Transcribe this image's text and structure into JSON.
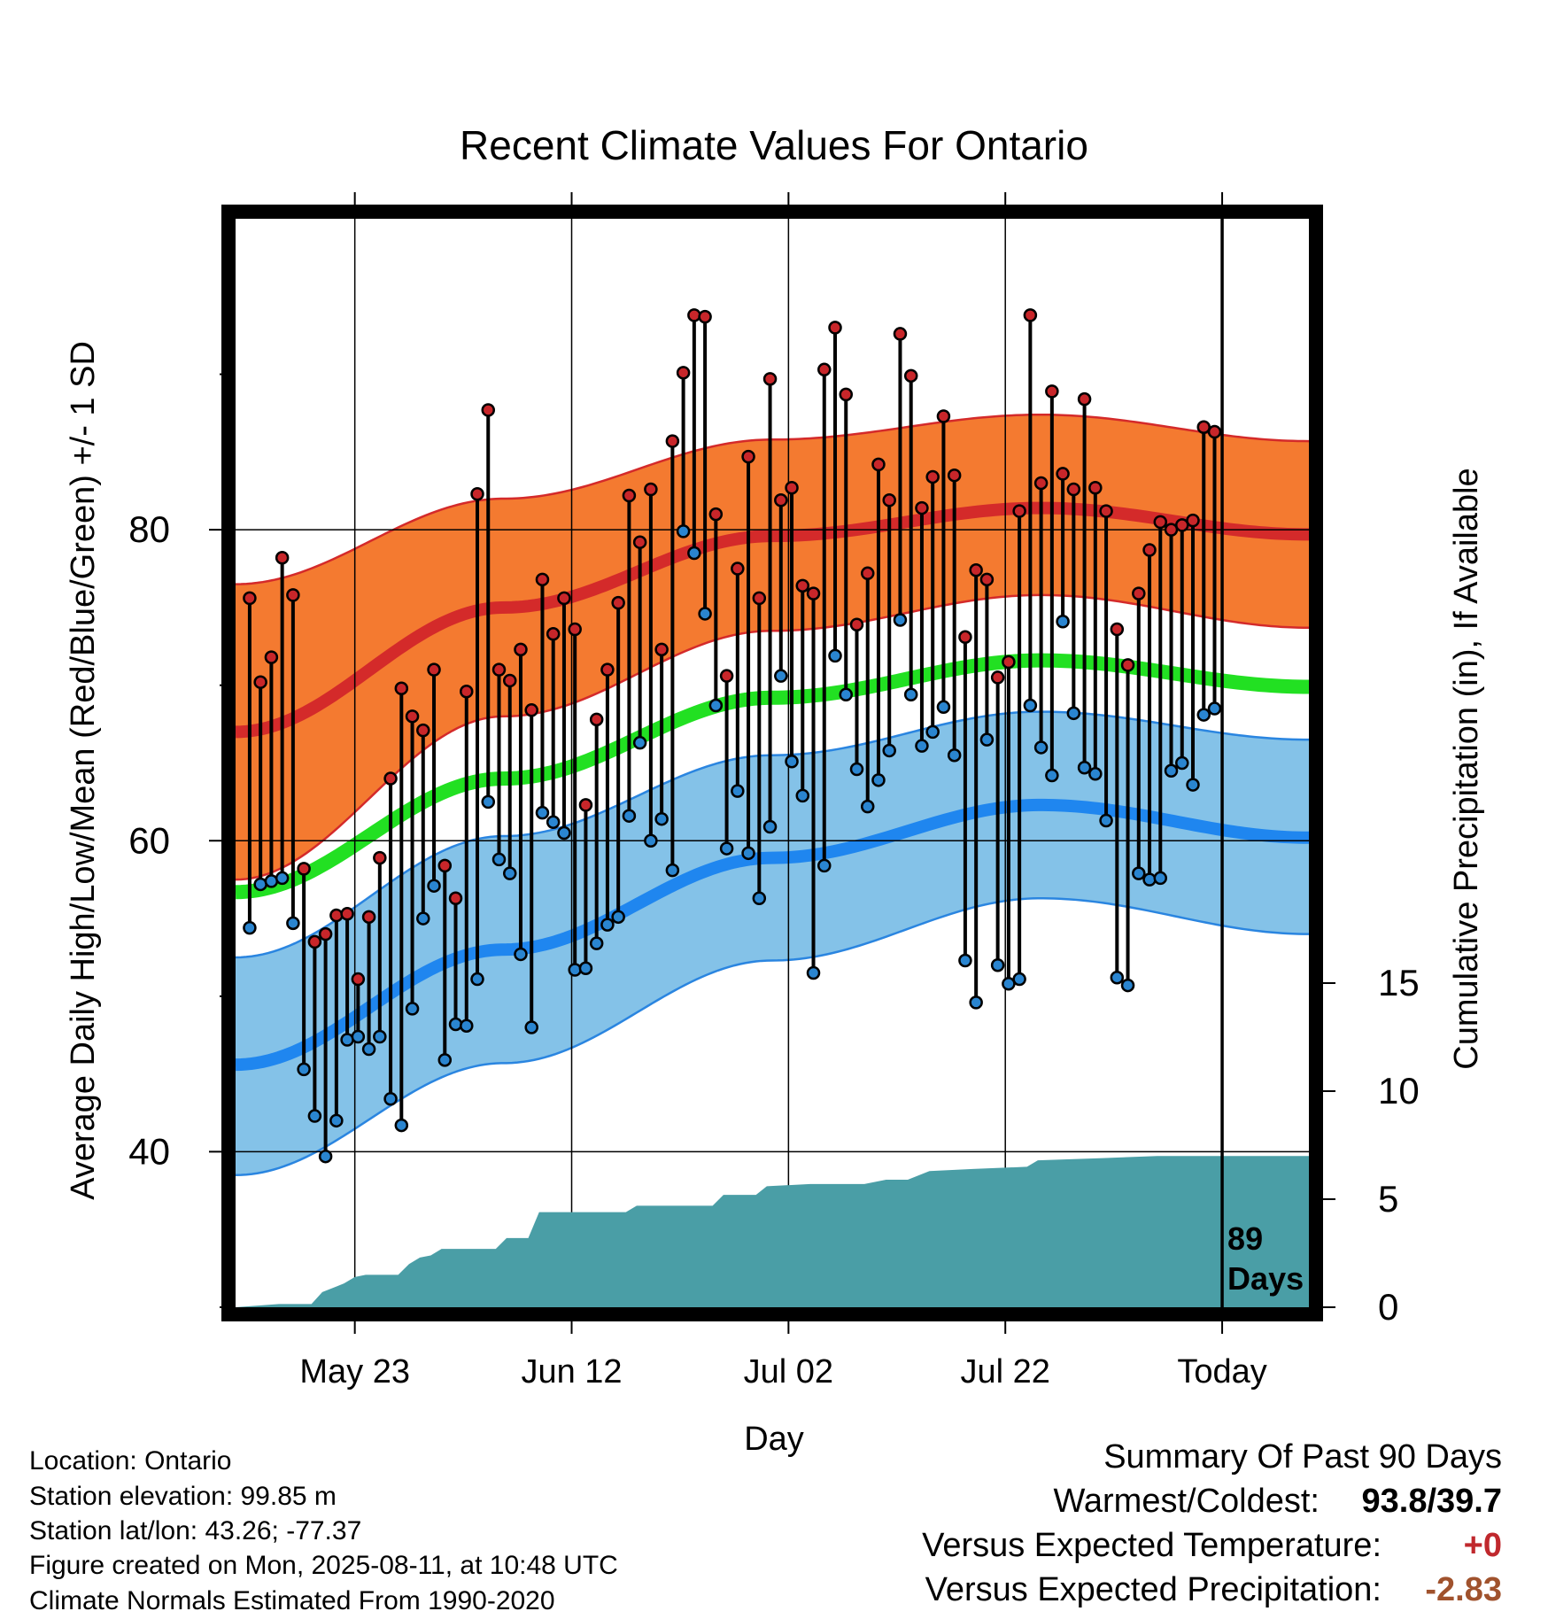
{
  "chart_data": {
    "type": "line",
    "title": "Recent Climate Values For Ontario",
    "xlabel": "Day",
    "ylabel_left": "Average Daily High/Low/Mean (Red/Blue/Green) +/- 1 SD",
    "ylabel_right": "Cumulative Precipitation (in), If Available",
    "x_ticks": [
      {
        "day": 11,
        "label": "May 23"
      },
      {
        "day": 31,
        "label": "Jun 12"
      },
      {
        "day": 51,
        "label": "Jul 02"
      },
      {
        "day": 71,
        "label": "Jul 22"
      },
      {
        "day": 91,
        "label": "Today"
      }
    ],
    "y_left": {
      "ticks": [
        40,
        60,
        80
      ],
      "minor_ticks": [
        30,
        50,
        70,
        90
      ],
      "range": [
        30,
        100
      ]
    },
    "y_right": {
      "ticks": [
        0,
        5,
        10,
        15
      ],
      "range": [
        0,
        15
      ]
    },
    "days_label": {
      "number": "89",
      "unit": "Days"
    },
    "normals": {
      "high_mean": [
        67.0,
        75.0,
        79.6,
        81.4,
        79.7
      ],
      "high_upper": [
        76.5,
        82.0,
        85.8,
        87.4,
        85.7
      ],
      "high_lower": [
        57.5,
        68.0,
        73.5,
        75.8,
        73.7
      ],
      "avg_mean": [
        56.7,
        64.0,
        69.2,
        71.6,
        69.9
      ],
      "low_mean": [
        45.6,
        53.0,
        58.9,
        62.3,
        60.2
      ],
      "low_upper": [
        52.5,
        60.3,
        65.5,
        68.3,
        66.5
      ],
      "low_lower": [
        38.5,
        45.7,
        52.3,
        56.3,
        54.0
      ]
    },
    "series": [
      {
        "name": "Daily High",
        "color": "#c8262a",
        "values": [
          75.6,
          70.2,
          71.8,
          78.2,
          75.8,
          58.2,
          53.5,
          54.0,
          55.2,
          55.3,
          51.1,
          55.1,
          58.9,
          64.0,
          69.8,
          68.0,
          67.1,
          71.0,
          58.4,
          56.3,
          69.6,
          82.3,
          87.7,
          71.0,
          70.3,
          72.3,
          68.4,
          76.8,
          73.3,
          75.6,
          73.6,
          62.3,
          67.8,
          71.0,
          75.3,
          82.2,
          79.2,
          82.6,
          72.3,
          85.7,
          90.1,
          93.8,
          93.7,
          81.0,
          70.6,
          77.5,
          84.7,
          75.6,
          89.7,
          81.9,
          82.7,
          76.4,
          75.9,
          90.3,
          93.0,
          88.7,
          73.9,
          77.2,
          84.2,
          81.9,
          92.6,
          89.9,
          81.4,
          83.4,
          87.3,
          83.5,
          73.1,
          77.4,
          76.8,
          70.5,
          71.5,
          81.2,
          93.8,
          83.0,
          88.9,
          83.6,
          82.6,
          88.4,
          82.7,
          81.2,
          73.6,
          71.3,
          75.9,
          78.7,
          80.5,
          80.0,
          80.3,
          80.6,
          86.6,
          86.3,
          85.8
        ]
      },
      {
        "name": "Daily Low",
        "color": "#2a85d0",
        "values": [
          54.4,
          57.2,
          57.4,
          57.6,
          54.7,
          45.3,
          42.3,
          39.7,
          42.0,
          47.2,
          47.4,
          46.6,
          47.4,
          43.4,
          41.7,
          49.2,
          55.0,
          57.1,
          45.9,
          48.2,
          48.1,
          51.1,
          62.5,
          58.8,
          57.9,
          52.7,
          48.0,
          61.8,
          61.2,
          60.5,
          51.7,
          51.8,
          53.4,
          54.6,
          55.1,
          61.6,
          66.3,
          60.0,
          61.4,
          58.1,
          79.9,
          78.5,
          74.6,
          68.7,
          59.5,
          63.2,
          59.2,
          56.3,
          60.9,
          70.6,
          65.1,
          62.9,
          51.5,
          58.4,
          71.9,
          69.4,
          64.6,
          62.2,
          63.9,
          65.8,
          74.2,
          69.4,
          66.1,
          67.0,
          68.6,
          65.5,
          52.3,
          49.6,
          66.5,
          52.0,
          50.8,
          51.1,
          68.7,
          66.0,
          64.2,
          74.1,
          68.2,
          64.7,
          64.3,
          61.3,
          51.2,
          50.7,
          57.9,
          57.5,
          57.6,
          64.5,
          65.0,
          63.6,
          68.1,
          68.5
        ]
      },
      {
        "name": "Cumulative Precipitation",
        "color": "#4a9ea6",
        "steps": [
          [
            0,
            0
          ],
          [
            4,
            0.15
          ],
          [
            7,
            0.15
          ],
          [
            8,
            0.7
          ],
          [
            10,
            1.1
          ],
          [
            11,
            1.4
          ],
          [
            12,
            1.5
          ],
          [
            15,
            1.5
          ],
          [
            16,
            2.0
          ],
          [
            17,
            2.3
          ],
          [
            18,
            2.4
          ],
          [
            19,
            2.7
          ],
          [
            24,
            2.7
          ],
          [
            25,
            3.2
          ],
          [
            27,
            3.2
          ],
          [
            28,
            4.4
          ],
          [
            36,
            4.4
          ],
          [
            37,
            4.7
          ],
          [
            44,
            4.7
          ],
          [
            45,
            5.2
          ],
          [
            48,
            5.2
          ],
          [
            49,
            5.6
          ],
          [
            53,
            5.7
          ],
          [
            58,
            5.7
          ],
          [
            60,
            5.9
          ],
          [
            62,
            5.9
          ],
          [
            63,
            6.1
          ],
          [
            64,
            6.3
          ],
          [
            68,
            6.4
          ],
          [
            73,
            6.5
          ],
          [
            74,
            6.8
          ],
          [
            80,
            6.9
          ],
          [
            85,
            7.0
          ],
          [
            92,
            7.0
          ],
          [
            99,
            7.0
          ]
        ]
      }
    ]
  },
  "footer_left": [
    "Location: Ontario",
    "Station elevation: 99.85 m",
    "Station lat/lon: 43.26; -77.37",
    "Figure created on Mon, 2025-08-11, at 10:48 UTC",
    "Climate Normals Estimated From 1990-2020"
  ],
  "summary": {
    "heading": "Summary Of Past 90 Days",
    "warm_cold_label": "Warmest/Coldest:",
    "warm_cold_value": "93.8/39.7",
    "temp_label": "Versus Expected Temperature:",
    "temp_value": "+0",
    "precip_label": "Versus Expected Precipitation:",
    "precip_value": "-2.83",
    "temp_value_color": "#c0282d",
    "precip_value_color": "#a0522d"
  }
}
